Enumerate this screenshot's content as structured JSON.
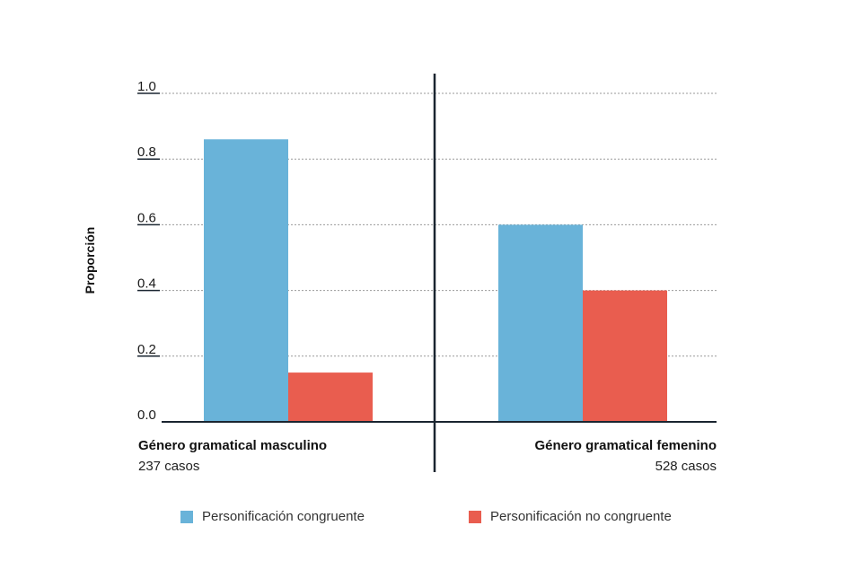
{
  "chart_data": {
    "type": "bar",
    "ylabel": "Proporción",
    "ylim": [
      0,
      1.0
    ],
    "yticks": [
      "0.0",
      "0.2",
      "0.4",
      "0.6",
      "0.8",
      "1.0"
    ],
    "grid": "horizontal dotted",
    "categories": [
      {
        "label": "Género gramatical masculino",
        "cases": "237 casos"
      },
      {
        "label": "Género gramatical femenino",
        "cases": "528 casos"
      }
    ],
    "series": [
      {
        "name": "Personificación congruente",
        "color": "#69b3d9",
        "values": [
          0.86,
          0.6
        ]
      },
      {
        "name": "Personificación no congruente",
        "color": "#e95d4f",
        "values": [
          0.15,
          0.4
        ]
      }
    ],
    "legend_position": "bottom"
  }
}
